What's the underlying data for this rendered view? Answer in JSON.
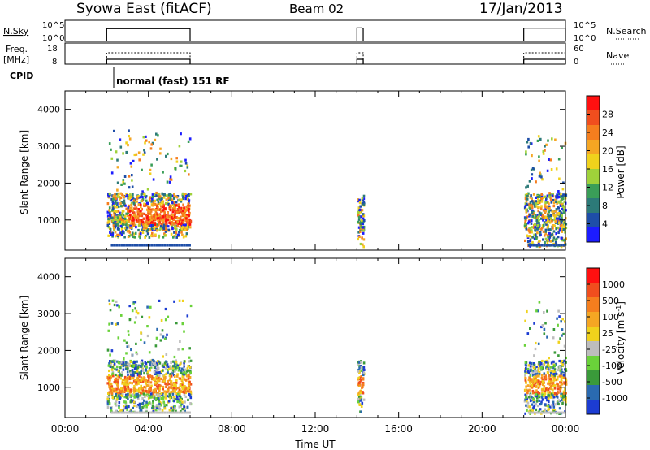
{
  "header": {
    "station": "Syowa East (fitACF)",
    "beam": "Beam 02",
    "date": "17/Jan/2013"
  },
  "panels": {
    "nsky": {
      "left_label": "N.Sky",
      "left_ticks": [
        "10^5",
        "10^0"
      ],
      "right_ticks": [
        "10^5",
        "10^0"
      ],
      "right_label": "N.Search",
      "right_legend_style": "dotted"
    },
    "freq": {
      "left_label": "Freq.",
      "left_unit": "[MHz]",
      "left_ticks": [
        "18",
        "8"
      ],
      "right_ticks": [
        "60",
        "0"
      ],
      "right_label": "Nave",
      "right_legend_style": "dotted"
    },
    "cpid": {
      "label": "CPID",
      "mode": "normal (fast) 151 RF"
    }
  },
  "chart_data": [
    {
      "type": "heatmap",
      "name": "power",
      "ylabel": "Slant Range [km]",
      "ylim": [
        180,
        4500
      ],
      "yticks": [
        "1000",
        "2000",
        "3000",
        "4000"
      ],
      "colorbar": {
        "label": "Power [dB]",
        "ticks": [
          "4",
          "8",
          "12",
          "16",
          "20",
          "24",
          "28"
        ],
        "colors": [
          "#1c1cff",
          "#1e4ea8",
          "#2c7a78",
          "#3a9e58",
          "#9fd23a",
          "#f0d21c",
          "#f5a623",
          "#f57e1e",
          "#f04e1e",
          "#ff1010"
        ]
      },
      "echo_bands": [
        {
          "t": [
            2.0,
            6.0
          ],
          "range": [
            500,
            3400
          ],
          "dominant": "mixed"
        },
        {
          "t": [
            14.0,
            14.3
          ],
          "range": [
            250,
            1700
          ],
          "dominant": "mixed"
        },
        {
          "t": [
            22.0,
            24.0
          ],
          "range": [
            250,
            3300
          ],
          "dominant": "mixed"
        }
      ]
    },
    {
      "type": "heatmap",
      "name": "velocity",
      "xlabel": "Time UT",
      "ylabel": "Slant Range [km]",
      "ylim": [
        180,
        4500
      ],
      "yticks": [
        "1000",
        "2000",
        "3000",
        "4000"
      ],
      "xticks": [
        "00:00",
        "04:00",
        "08:00",
        "12:00",
        "16:00",
        "20:00",
        "00:00"
      ],
      "colorbar": {
        "label": "Velocity [m s",
        "label_sup": "-1",
        "label_end": "]",
        "ticks": [
          "1000",
          "500",
          "100",
          "25",
          "-25",
          "-100",
          "-500",
          "-1000"
        ],
        "colors": [
          "#1c3cd2",
          "#2a6ab0",
          "#3a9a3a",
          "#6ad23a",
          "#bdbdbd",
          "#f0d21c",
          "#f5a623",
          "#f57e1e",
          "#f04e1e",
          "#ff1010"
        ]
      },
      "echo_bands": [
        {
          "t": [
            2.0,
            6.0
          ],
          "range": [
            300,
            3400
          ],
          "dominant": "mixed"
        },
        {
          "t": [
            14.0,
            14.3
          ],
          "range": [
            250,
            1700
          ],
          "dominant": "mixed"
        },
        {
          "t": [
            22.0,
            24.0
          ],
          "range": [
            250,
            3300
          ],
          "dominant": "mixed"
        }
      ]
    }
  ],
  "xlim_hours": [
    0,
    24
  ],
  "operating_intervals": [
    [
      2.0,
      6.0
    ],
    [
      14.0,
      14.3
    ],
    [
      22.0,
      24.0
    ]
  ]
}
